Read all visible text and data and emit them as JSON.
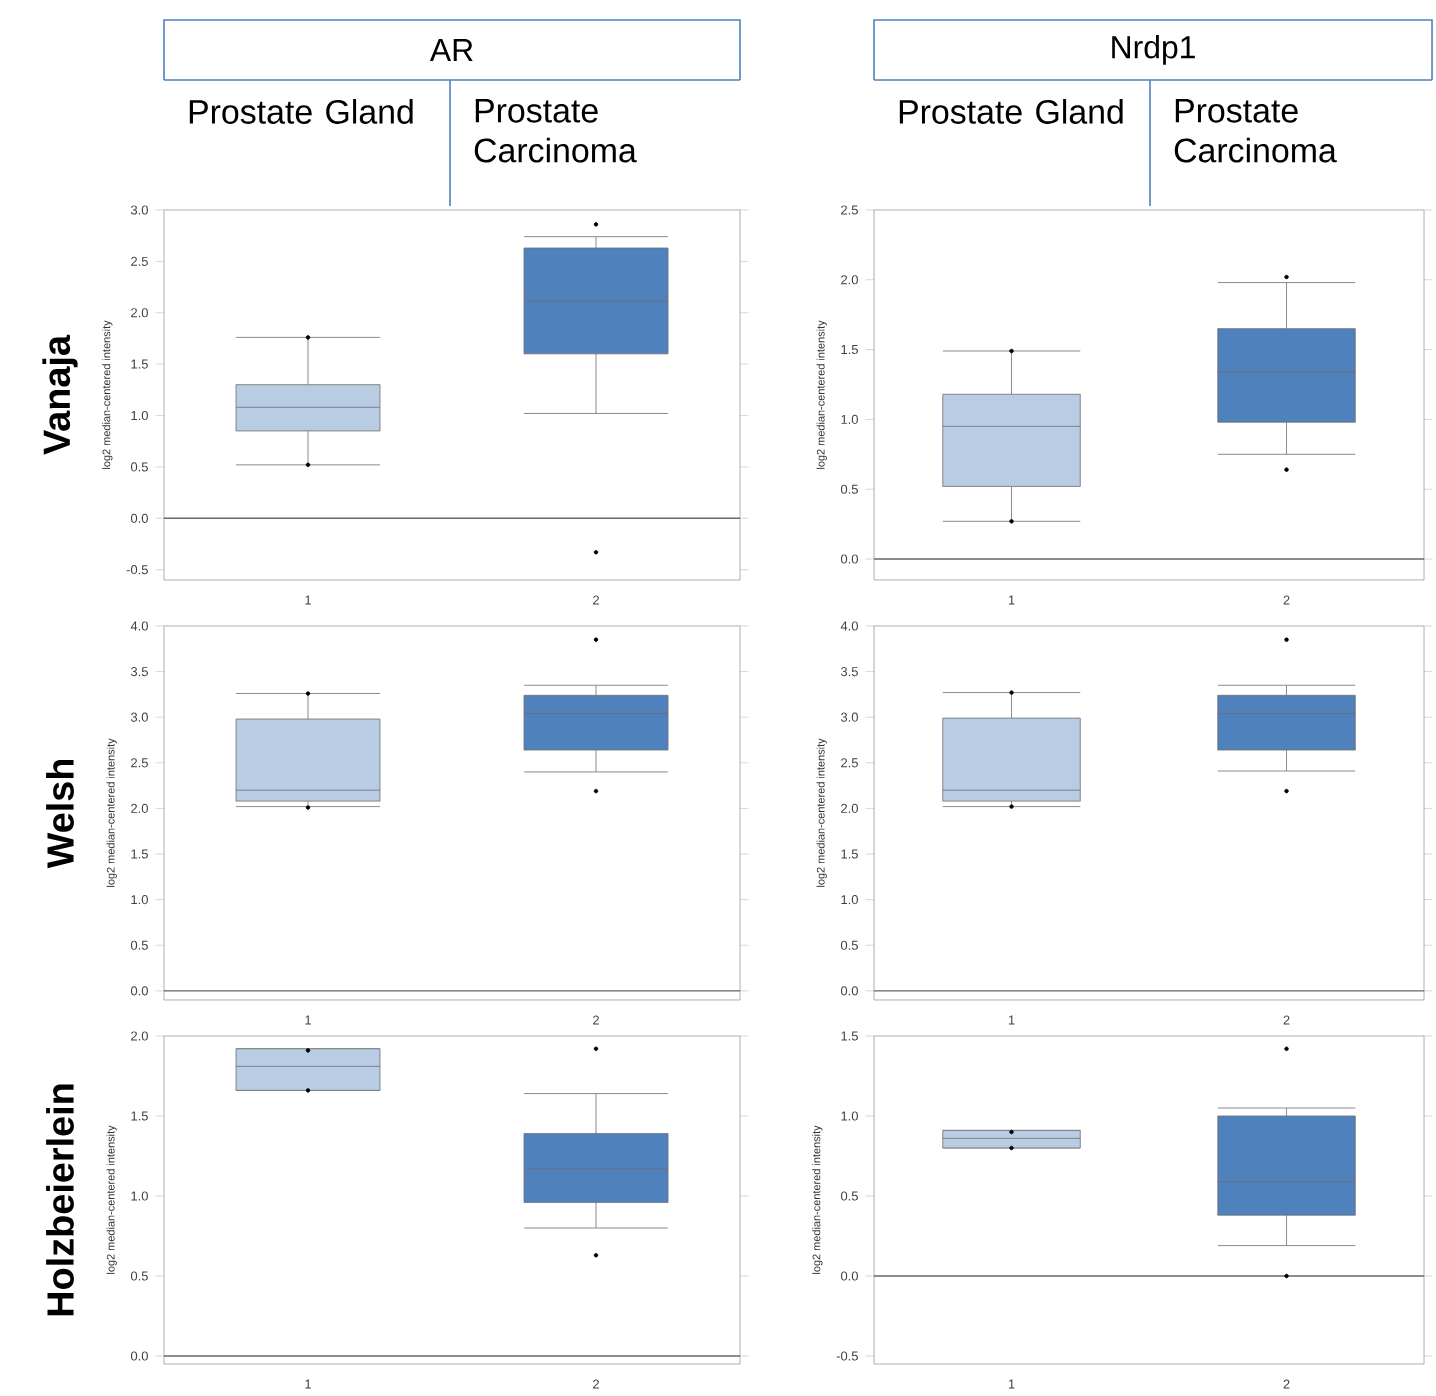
{
  "chart_data": [
    {
      "type": "box",
      "title": "AR",
      "annotations": [
        "Prostate Gland",
        "Prostate Carcinoma",
        "Vanaja"
      ],
      "ylabel": "log2 median-centered intensity",
      "categories": [
        "1",
        "2"
      ],
      "colors": [
        "#b8cce4",
        "#4f81bd"
      ],
      "ylim": [
        -0.6,
        3.0
      ],
      "ref_lines": [
        {
          "axis": "y",
          "value": 0
        }
      ],
      "yticks": [
        {
          "value": -0.5,
          "label": "-0.5"
        },
        {
          "value": 0,
          "label": "0.0"
        },
        {
          "value": 0.5,
          "label": "0.5"
        },
        {
          "value": 1,
          "label": "1.0"
        },
        {
          "value": 1.5,
          "label": "1.5"
        },
        {
          "value": 2,
          "label": "2.0"
        },
        {
          "value": 2.5,
          "label": "2.5"
        },
        {
          "value": 3,
          "label": "3.0"
        }
      ],
      "boxes": [
        {
          "low": 0.52,
          "q1": 0.85,
          "median": 1.08,
          "q3": 1.3,
          "high": 1.76,
          "outliers": [
            1.76,
            0.52
          ]
        },
        {
          "low": 1.02,
          "q1": 1.6,
          "median": 2.11,
          "q3": 2.63,
          "high": 2.74,
          "outliers": [
            2.86,
            -0.33
          ]
        }
      ]
    },
    {
      "type": "box",
      "title": "Nrdp1",
      "annotations": [
        "Prostate Gland",
        "Prostate Carcinoma"
      ],
      "ylabel": "log2 median-centered intensity",
      "categories": [
        "1",
        "2"
      ],
      "colors": [
        "#b8cce4",
        "#4f81bd"
      ],
      "ylim": [
        -0.15,
        2.5
      ],
      "ref_lines": [
        {
          "axis": "y",
          "value": 0
        }
      ],
      "yticks": [
        {
          "value": 0,
          "label": "0.0"
        },
        {
          "value": 0.5,
          "label": "0.5"
        },
        {
          "value": 1,
          "label": "1.0"
        },
        {
          "value": 1.5,
          "label": "1.5"
        },
        {
          "value": 2,
          "label": "2.0"
        },
        {
          "value": 2.5,
          "label": "2.5"
        }
      ],
      "boxes": [
        {
          "low": 0.27,
          "q1": 0.52,
          "median": 0.95,
          "q3": 1.18,
          "high": 1.49,
          "outliers": [
            1.49,
            0.27
          ]
        },
        {
          "low": 0.75,
          "q1": 0.98,
          "median": 1.34,
          "q3": 1.65,
          "high": 1.98,
          "outliers": [
            2.02,
            0.64
          ]
        }
      ]
    },
    {
      "type": "box",
      "annotations": [
        "Welsh"
      ],
      "ylabel": "log2 median-centered intensity",
      "categories": [
        "1",
        "2"
      ],
      "colors": [
        "#b8cce4",
        "#4f81bd"
      ],
      "ylim": [
        -0.1,
        4.0
      ],
      "ref_lines": [
        {
          "axis": "y",
          "value": 0
        }
      ],
      "yticks": [
        {
          "value": 0,
          "label": "0.0"
        },
        {
          "value": 0.5,
          "label": "0.5"
        },
        {
          "value": 1,
          "label": "1.0"
        },
        {
          "value": 1.5,
          "label": "1.5"
        },
        {
          "value": 2,
          "label": "2.0"
        },
        {
          "value": 2.5,
          "label": "2.5"
        },
        {
          "value": 3,
          "label": "3.0"
        },
        {
          "value": 3.5,
          "label": "3.5"
        },
        {
          "value": 4,
          "label": "4.0"
        }
      ],
      "boxes": [
        {
          "low": 2.02,
          "q1": 2.08,
          "median": 2.2,
          "q3": 2.98,
          "high": 3.26,
          "outliers": [
            3.26,
            2.01
          ]
        },
        {
          "low": 2.4,
          "q1": 2.64,
          "median": 3.04,
          "q3": 3.24,
          "high": 3.35,
          "outliers": [
            3.85,
            2.19
          ]
        }
      ]
    },
    {
      "type": "box",
      "ylabel": "log2 median-centered intensity",
      "categories": [
        "1",
        "2"
      ],
      "colors": [
        "#b8cce4",
        "#4f81bd"
      ],
      "ylim": [
        -0.1,
        4.0
      ],
      "ref_lines": [
        {
          "axis": "y",
          "value": 0
        }
      ],
      "yticks": [
        {
          "value": 0,
          "label": "0.0"
        },
        {
          "value": 0.5,
          "label": "0.5"
        },
        {
          "value": 1,
          "label": "1.0"
        },
        {
          "value": 1.5,
          "label": "1.5"
        },
        {
          "value": 2,
          "label": "2.0"
        },
        {
          "value": 2.5,
          "label": "2.5"
        },
        {
          "value": 3,
          "label": "3.0"
        },
        {
          "value": 3.5,
          "label": "3.5"
        },
        {
          "value": 4,
          "label": "4.0"
        }
      ],
      "boxes": [
        {
          "low": 2.02,
          "q1": 2.08,
          "median": 2.2,
          "q3": 2.99,
          "high": 3.27,
          "outliers": [
            3.27,
            2.02
          ]
        },
        {
          "low": 2.41,
          "q1": 2.64,
          "median": 3.04,
          "q3": 3.24,
          "high": 3.35,
          "outliers": [
            3.85,
            2.19
          ]
        }
      ]
    },
    {
      "type": "box",
      "annotations": [
        "Holzbeierlein"
      ],
      "ylabel": "log2 median-centered intensity",
      "categories": [
        "1",
        "2"
      ],
      "colors": [
        "#b8cce4",
        "#4f81bd"
      ],
      "ylim": [
        -0.05,
        2.0
      ],
      "ref_lines": [
        {
          "axis": "y",
          "value": 0
        }
      ],
      "yticks": [
        {
          "value": 0,
          "label": "0.0"
        },
        {
          "value": 0.5,
          "label": "0.5"
        },
        {
          "value": 1,
          "label": "1.0"
        },
        {
          "value": 1.5,
          "label": "1.5"
        },
        {
          "value": 2,
          "label": "2.0"
        }
      ],
      "boxes": [
        {
          "low": 1.66,
          "q1": 1.66,
          "median": 1.81,
          "q3": 1.92,
          "high": 1.92,
          "outliers": [
            1.91,
            1.66
          ]
        },
        {
          "low": 0.8,
          "q1": 0.96,
          "median": 1.17,
          "q3": 1.39,
          "high": 1.64,
          "outliers": [
            1.92,
            0.63
          ]
        }
      ]
    },
    {
      "type": "box",
      "ylabel": "log2 median-centered intensity",
      "categories": [
        "1",
        "2"
      ],
      "colors": [
        "#b8cce4",
        "#4f81bd"
      ],
      "ylim": [
        -0.55,
        1.5
      ],
      "ref_lines": [
        {
          "axis": "y",
          "value": 0
        }
      ],
      "yticks": [
        {
          "value": -0.5,
          "label": "-0.5"
        },
        {
          "value": 0,
          "label": "0.0"
        },
        {
          "value": 0.5,
          "label": "0.5"
        },
        {
          "value": 1,
          "label": "1.0"
        },
        {
          "value": 1.5,
          "label": "1.5"
        }
      ],
      "boxes": [
        {
          "low": 0.8,
          "q1": 0.8,
          "median": 0.86,
          "q3": 0.91,
          "high": 0.91,
          "outliers": [
            0.9,
            0.8
          ]
        },
        {
          "low": 0.19,
          "q1": 0.38,
          "median": 0.59,
          "q3": 1.0,
          "high": 1.05,
          "outliers": [
            1.42,
            0.0
          ]
        }
      ]
    }
  ]
}
